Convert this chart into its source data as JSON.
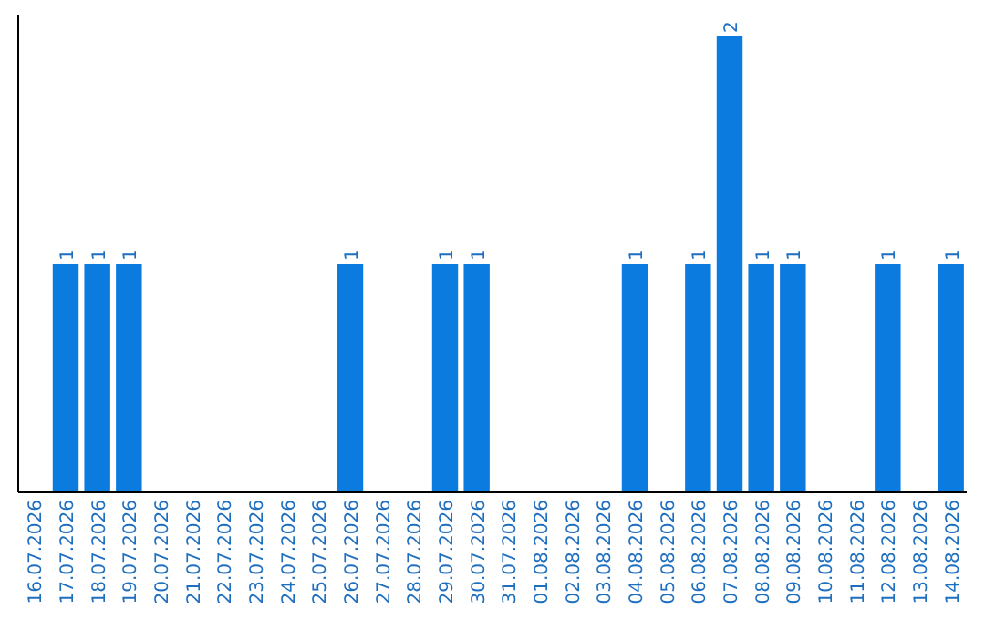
{
  "chart_data": {
    "type": "bar",
    "color": "#0b7be0",
    "categories": [
      "16.07.2026",
      "17.07.2026",
      "18.07.2026",
      "19.07.2026",
      "20.07.2026",
      "21.07.2026",
      "22.07.2026",
      "23.07.2026",
      "24.07.2026",
      "25.07.2026",
      "26.07.2026",
      "27.07.2026",
      "28.07.2026",
      "29.07.2026",
      "30.07.2026",
      "31.07.2026",
      "01.08.2026",
      "02.08.2026",
      "03.08.2026",
      "04.08.2026",
      "05.08.2026",
      "06.08.2026",
      "07.08.2026",
      "08.08.2026",
      "09.08.2026",
      "10.08.2026",
      "11.08.2026",
      "12.08.2026",
      "13.08.2026",
      "14.08.2026"
    ],
    "values": [
      0,
      1,
      1,
      1,
      0,
      0,
      0,
      0,
      0,
      0,
      1,
      0,
      0,
      1,
      1,
      0,
      0,
      0,
      0,
      1,
      0,
      1,
      2,
      1,
      1,
      0,
      0,
      1,
      0,
      1
    ],
    "value_labels": [
      null,
      "1",
      "1",
      "1",
      null,
      null,
      null,
      null,
      null,
      null,
      "1",
      null,
      null,
      "1",
      "1",
      null,
      null,
      null,
      null,
      "1",
      null,
      "1",
      "2",
      "1",
      "1",
      null,
      null,
      "1",
      null,
      "1"
    ],
    "tick_labels": "x"
  }
}
